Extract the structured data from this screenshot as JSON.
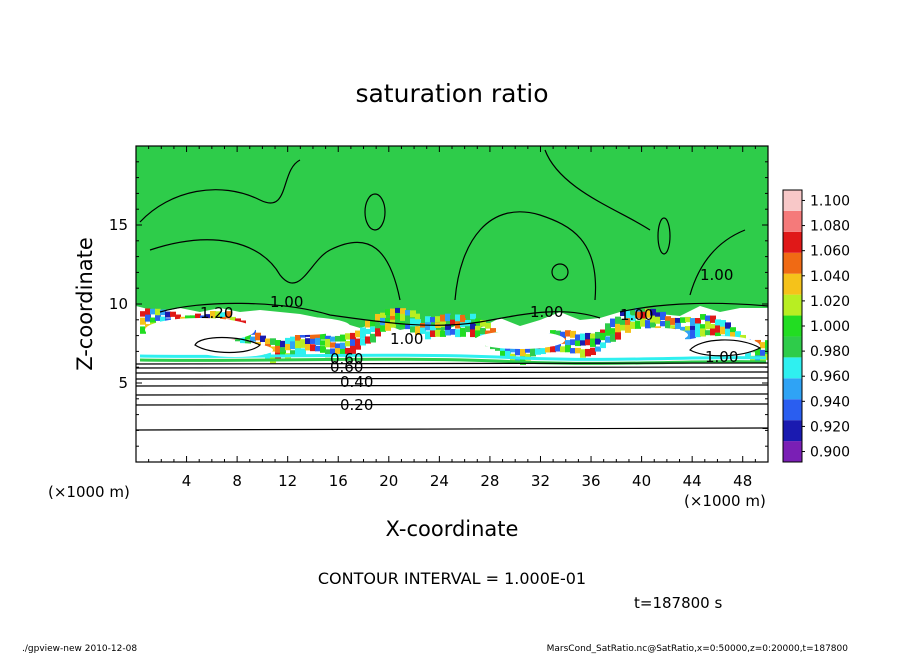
{
  "chart_data": {
    "type": "heatmap",
    "title": "saturation ratio",
    "xlabel": "X-coordinate",
    "ylabel": "Z-coordinate",
    "x_unit": "(×1000 m)",
    "y_unit": "(×1000 m)",
    "xlim": [
      0,
      50
    ],
    "ylim": [
      0,
      20
    ],
    "x_ticks": [
      4,
      8,
      12,
      16,
      20,
      24,
      28,
      32,
      36,
      40,
      44,
      48
    ],
    "y_ticks": [
      5,
      10,
      15
    ],
    "colorbar": {
      "levels": [
        "0.900",
        "0.920",
        "0.940",
        "0.960",
        "0.980",
        "1.000",
        "1.020",
        "1.040",
        "1.060",
        "1.080",
        "1.100"
      ],
      "colors": [
        "#7a1fb5",
        "#1a1ab0",
        "#2a5ef0",
        "#2fa3f5",
        "#2ff0f0",
        "#2ecc4a",
        "#22dd22",
        "#b8ee22",
        "#f5c21a",
        "#f06a14",
        "#e01818",
        "#f57a7a",
        "#f8c8c8"
      ]
    },
    "contour_labels": [
      "1.20",
      "0.60",
      "0.40",
      "0.20",
      "1.00",
      "1.00",
      "1.00",
      "1.00",
      "1.00",
      "0.60",
      "1.00"
    ],
    "contour_interval": "CONTOUR INTERVAL = 1.000E-01",
    "time": "t=187800 s"
  },
  "footer": {
    "left": "./gpview-new   2010-12-08",
    "right": "MarsCond_SatRatio.nc@SatRatio,x=0:50000,z=0:20000,t=187800"
  }
}
